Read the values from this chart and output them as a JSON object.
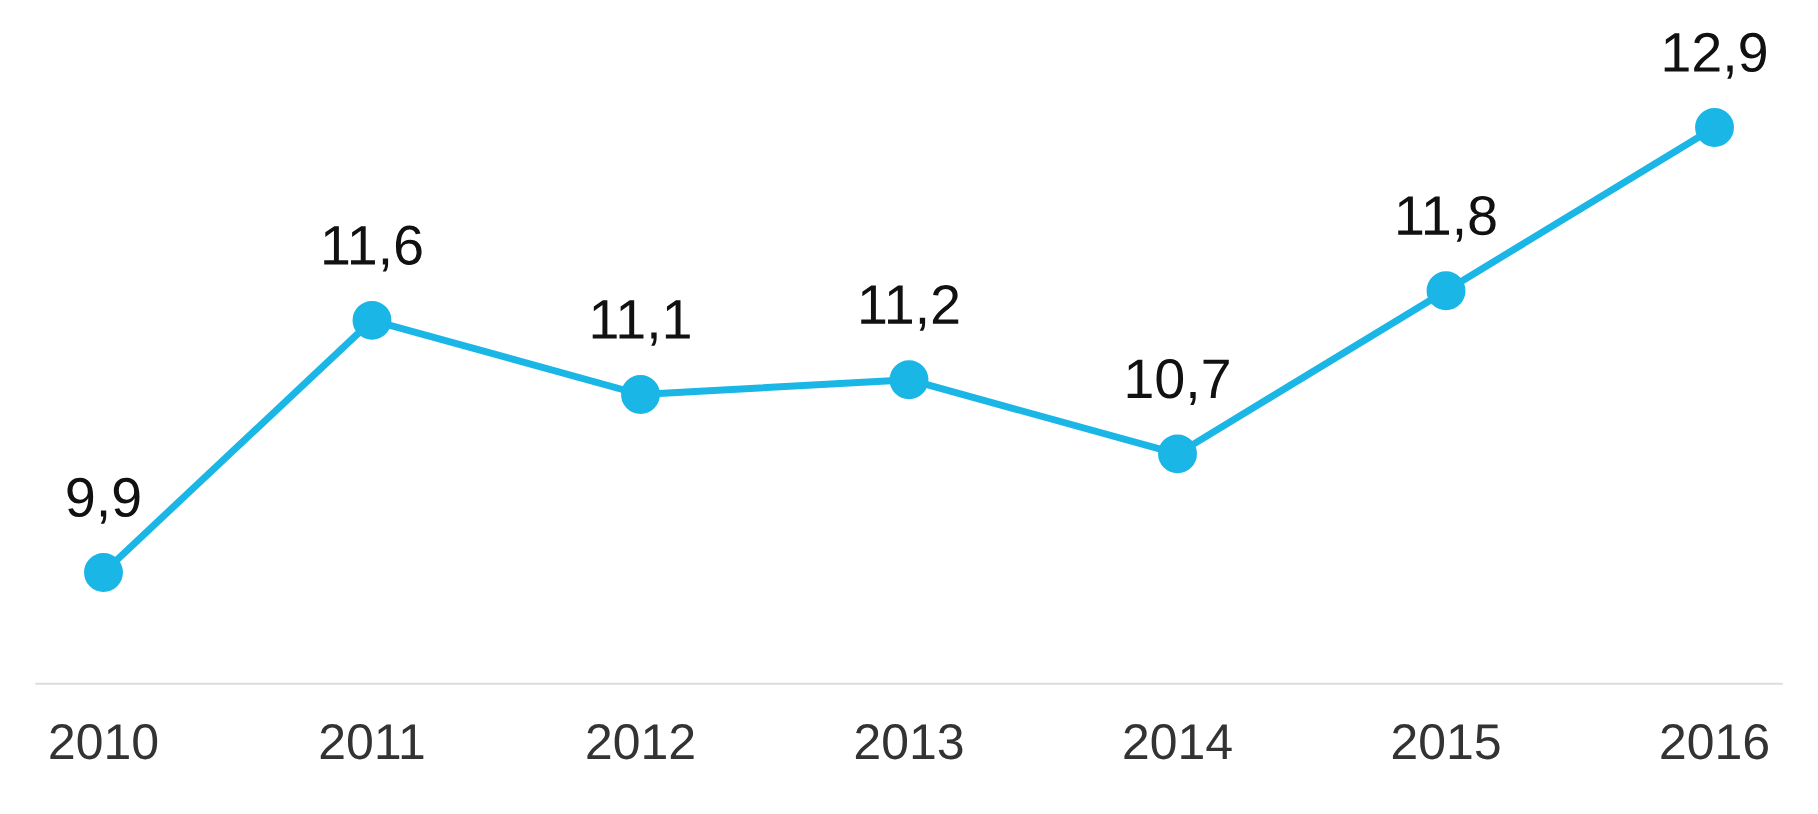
{
  "chart_data": {
    "type": "line",
    "categories": [
      "2010",
      "2011",
      "2012",
      "2013",
      "2014",
      "2015",
      "2016"
    ],
    "series": [
      {
        "color": "#19b6e6",
        "values": [
          9.9,
          11.6,
          11.1,
          11.2,
          10.7,
          11.8,
          12.9
        ],
        "value_labels": [
          "9,9",
          "11,6",
          "11,1",
          "11,2",
          "10,7",
          "11,8",
          "12,9"
        ]
      }
    ],
    "marker": "circle",
    "line_style": "solid",
    "grid": false,
    "legend": false
  }
}
